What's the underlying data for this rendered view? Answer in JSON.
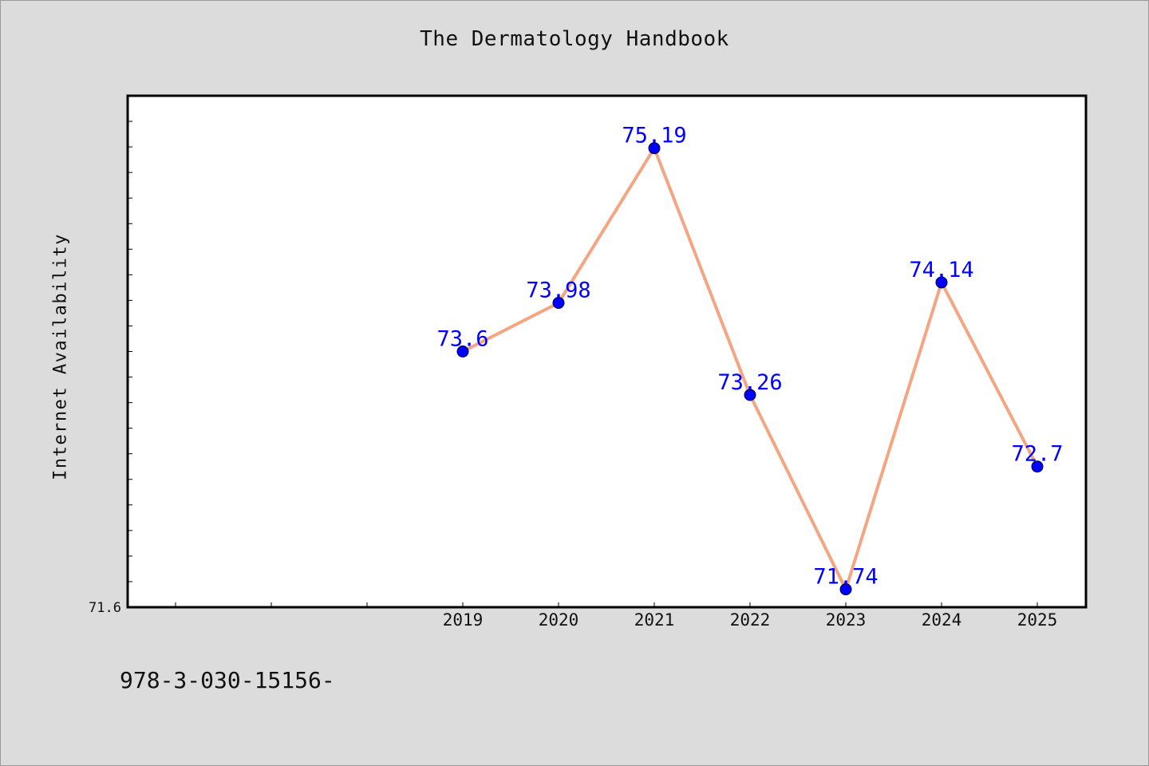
{
  "title": "The Dermatology Handbook",
  "footnote": "978-3-030-15156-",
  "chart_data": {
    "type": "line",
    "title": "The Dermatology Handbook",
    "xlabel": "",
    "ylabel": "Internet Availability",
    "categories": [
      "2019",
      "2020",
      "2021",
      "2022",
      "2023",
      "2024",
      "2025"
    ],
    "values": [
      73.6,
      73.98,
      75.19,
      73.26,
      71.74,
      74.14,
      72.7
    ],
    "data_labels": [
      "73.6",
      "73.98",
      "75.19",
      "73.26",
      "71.74",
      "74.14",
      "72.7"
    ],
    "ylim": [
      71.6,
      75.6
    ],
    "y_tick_labels": [
      "71.6"
    ],
    "grid": false,
    "legend": "none",
    "colors": {
      "line": "#f4a582",
      "marker": "#0000ff",
      "data_label": "#0000ff",
      "plot_background": "#ffffff",
      "figure_background": "#dcdcdc"
    }
  }
}
